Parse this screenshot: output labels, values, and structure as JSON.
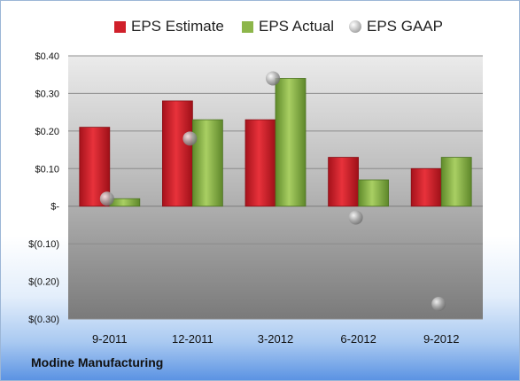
{
  "company": "Modine Manufacturing",
  "chart_data": {
    "type": "bar",
    "categories": [
      "9-2011",
      "12-2011",
      "3-2012",
      "6-2012",
      "9-2012"
    ],
    "series": [
      {
        "name": "EPS Estimate",
        "kind": "bar",
        "color": "#d0202a",
        "values": [
          0.21,
          0.28,
          0.23,
          0.13,
          0.1
        ]
      },
      {
        "name": "EPS Actual",
        "kind": "bar",
        "color": "#8db64a",
        "values": [
          0.02,
          0.23,
          0.34,
          0.07,
          0.13
        ]
      },
      {
        "name": "EPS GAAP",
        "kind": "scatter",
        "color": "#b4b4b4",
        "values": [
          0.02,
          0.18,
          0.34,
          -0.03,
          -0.26
        ]
      }
    ],
    "ylim": [
      -0.3,
      0.4
    ],
    "yticks": [
      {
        "value": 0.4,
        "label": "$0.40"
      },
      {
        "value": 0.3,
        "label": "$0.30"
      },
      {
        "value": 0.2,
        "label": "$0.20"
      },
      {
        "value": 0.1,
        "label": "$0.10"
      },
      {
        "value": 0.0,
        "label": "$-"
      },
      {
        "value": -0.1,
        "label": "$(0.10)"
      },
      {
        "value": -0.2,
        "label": "$(0.20)"
      },
      {
        "value": -0.3,
        "label": "$(0.30)"
      }
    ],
    "grid": true,
    "legend_position": "top"
  }
}
